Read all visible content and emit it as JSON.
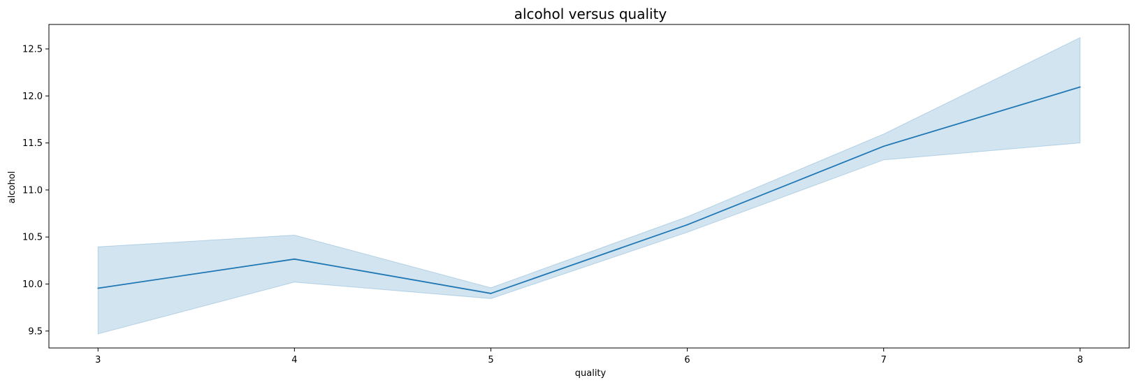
{
  "chart_data": {
    "type": "line",
    "title": "alcohol versus quality",
    "xlabel": "quality",
    "ylabel": "alcohol",
    "x": [
      3,
      4,
      5,
      6,
      7,
      8
    ],
    "xlim": [
      2.75,
      8.25
    ],
    "ylim": [
      9.32,
      12.76
    ],
    "xticks": [
      3,
      4,
      5,
      6,
      7,
      8
    ],
    "yticks": [
      9.5,
      10.0,
      10.5,
      11.0,
      11.5,
      12.0,
      12.5
    ],
    "ytick_labels": [
      "9.5",
      "10.0",
      "10.5",
      "11.0",
      "11.5",
      "12.0",
      "12.5"
    ],
    "grid": false,
    "series": [
      {
        "values": [
          9.955,
          10.265,
          9.9,
          10.63,
          11.465,
          12.095
        ],
        "ci_low": [
          9.47,
          10.02,
          9.845,
          10.55,
          11.32,
          11.5
        ],
        "ci_high": [
          10.395,
          10.52,
          9.96,
          10.715,
          11.595,
          12.62
        ],
        "color": "#1f77b4",
        "band_color": "#1f77b4"
      }
    ]
  }
}
